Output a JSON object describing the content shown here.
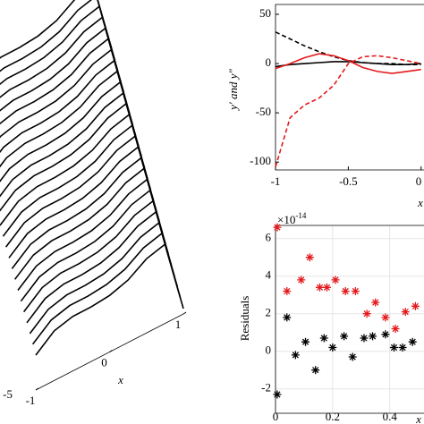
{
  "chart_data": [
    {
      "type": "surface3d",
      "xlabel": "x",
      "x": [
        -1,
        -0.75,
        -0.5,
        -0.25,
        0,
        0.25,
        0.5,
        0.75,
        1
      ],
      "profile": [
        0.3,
        0.45,
        0.5,
        0.5,
        0.52,
        0.58,
        0.7,
        0.75,
        0
      ],
      "depth": [
        -5,
        -4.58,
        -4.17,
        -3.75,
        -3.33,
        -2.92,
        -2.5,
        -2.08,
        -1.67,
        -1.25,
        -0.83,
        -0.42,
        0,
        0.42,
        0.83,
        1.25,
        1.67,
        2.08,
        2.5,
        2.92,
        3.33,
        3.75,
        4.17,
        4.58,
        5
      ],
      "color": "#000000",
      "xlim": [
        -1,
        1
      ],
      "xticks": [
        -1,
        0,
        1
      ],
      "ylim": [
        -5,
        5
      ],
      "yticks": [
        -5
      ],
      "zlim": [
        0,
        1
      ]
    },
    {
      "type": "line",
      "xlabel": "x",
      "ylabel": "y′  and  y″",
      "x": [
        -1,
        -0.9,
        -0.8,
        -0.7,
        -0.6,
        -0.5,
        -0.4,
        -0.3,
        -0.2,
        -0.1,
        0
      ],
      "series": [
        {
          "color": "#000000",
          "dash": false,
          "values": [
            -3,
            -1,
            0,
            1,
            2,
            2,
            1,
            0,
            -1,
            -1,
            0
          ]
        },
        {
          "color": "#000000",
          "dash": true,
          "values": [
            32,
            25,
            18,
            12,
            7,
            3,
            1,
            0,
            0,
            -1,
            -1
          ]
        },
        {
          "color": "#e41a1c",
          "dash": false,
          "values": [
            -5,
            0,
            6,
            10,
            8,
            3,
            -4,
            -8,
            -10,
            -8,
            -6
          ]
        },
        {
          "color": "#e41a1c",
          "dash": true,
          "values": [
            -105,
            -55,
            -42,
            -35,
            -22,
            0,
            7,
            8,
            6,
            3,
            0
          ]
        }
      ],
      "xlim": [
        -1,
        0.02
      ],
      "xticks": [
        -1,
        -0.5,
        0
      ],
      "ylim": [
        -108,
        60
      ],
      "yticks": [
        -100,
        -50,
        0,
        50
      ]
    },
    {
      "type": "scatter",
      "xlabel": "x",
      "ylabel": "Residuals",
      "multiplier": "×10",
      "multiplier_exp": "-14",
      "series": [
        {
          "color": "#e41a1c",
          "x": [
            0.006,
            0.04,
            0.09,
            0.12,
            0.155,
            0.18,
            0.21,
            0.245,
            0.28,
            0.32,
            0.35,
            0.385,
            0.42,
            0.455,
            0.49
          ],
          "values": [
            6.6,
            3.2,
            3.8,
            5.0,
            3.4,
            3.4,
            3.8,
            3.2,
            3.2,
            2.0,
            2.6,
            1.8,
            1.2,
            2.1,
            2.4
          ]
        },
        {
          "color": "#000000",
          "x": [
            0.006,
            0.04,
            0.07,
            0.105,
            0.14,
            0.17,
            0.2,
            0.24,
            0.27,
            0.31,
            0.34,
            0.385,
            0.415,
            0.445,
            0.48
          ],
          "values": [
            -2.3,
            1.8,
            -0.2,
            0.5,
            -1.0,
            0.7,
            0.2,
            0.8,
            -0.3,
            0.7,
            0.8,
            0.9,
            0.2,
            0.2,
            0.5
          ]
        }
      ],
      "xlim": [
        0,
        0.52
      ],
      "xticks": [
        0,
        0.2,
        0.4
      ],
      "ylim": [
        -3.3,
        6.7
      ],
      "yticks": [
        -2,
        0,
        2,
        4,
        6
      ],
      "grid": true
    }
  ]
}
